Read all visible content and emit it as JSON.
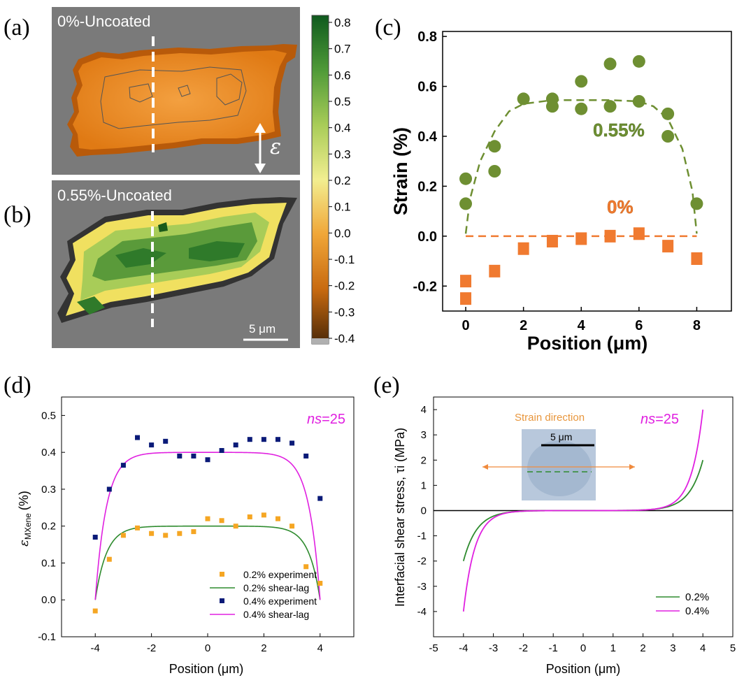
{
  "panel_labels": {
    "a": "(a)",
    "b": "(b)",
    "c": "(c)",
    "d": "(d)",
    "e": "(e)"
  },
  "map_a": {
    "label": "0%-Uncoated",
    "epsilon_symbol": "ε",
    "fill_color": "#f08a1c",
    "edge_color": "#b85a0a"
  },
  "map_b": {
    "label": "0.55%-Uncoated",
    "scale_bar": "5 μm",
    "fill_color": "#5a9a3a",
    "edge_color": "#f0e060"
  },
  "colorbar": {
    "ticks": [
      "0.8",
      "0.7",
      "0.6",
      "0.5",
      "0.4",
      "0.3",
      "0.2",
      "0.1",
      "0.0",
      "-0.1",
      "-0.2",
      "-0.3",
      "-0.4"
    ],
    "colors": [
      "#0f5a1e",
      "#4f9a38",
      "#a8cc58",
      "#f2ee90",
      "#f0a638",
      "#c86a10",
      "#4a2808"
    ]
  },
  "chart_data": [
    {
      "id": "c",
      "type": "scatter",
      "xlabel": "Position (μm)",
      "ylabel": "Strain (%)",
      "xlim": [
        -0.8,
        9.2
      ],
      "ylim": [
        -0.3,
        0.82
      ],
      "xticks": [
        0,
        2,
        4,
        6,
        8
      ],
      "yticks": [
        -0.2,
        0.0,
        0.2,
        0.4,
        0.6,
        0.8
      ],
      "ytick_labels": [
        "-0.2",
        "0.0",
        "0.2",
        "0.4",
        "0.6",
        "0.8"
      ],
      "series": [
        {
          "name": "0.55%",
          "color": "#6e8f32",
          "marker": "circle",
          "x": [
            0,
            0,
            1,
            1,
            2,
            3,
            3,
            4,
            4,
            5,
            5,
            6,
            6,
            7,
            7,
            8
          ],
          "y": [
            0.23,
            0.13,
            0.36,
            0.26,
            0.55,
            0.55,
            0.52,
            0.62,
            0.51,
            0.69,
            0.52,
            0.7,
            0.54,
            0.49,
            0.4,
            0.13
          ],
          "fit": {
            "x": [
              0,
              0.15,
              0.5,
              1,
              1.5,
              2,
              3,
              4,
              5,
              6,
              6.5,
              7,
              7.5,
              7.85,
              8
            ],
            "y": [
              0.01,
              0.15,
              0.3,
              0.42,
              0.5,
              0.53,
              0.545,
              0.545,
              0.545,
              0.54,
              0.52,
              0.47,
              0.35,
              0.18,
              0.01
            ]
          }
        },
        {
          "name": "0%",
          "color": "#f07a30",
          "marker": "square",
          "x": [
            0,
            0,
            1,
            2,
            3,
            4,
            5,
            6,
            7,
            8
          ],
          "y": [
            -0.18,
            -0.25,
            -0.14,
            -0.05,
            -0.02,
            -0.01,
            0.0,
            0.01,
            -0.04,
            -0.09
          ],
          "fit": {
            "x": [
              0,
              8
            ],
            "y": [
              0.0,
              0.0
            ]
          }
        }
      ]
    },
    {
      "id": "d",
      "type": "scatter",
      "xlabel": "Position (μm)",
      "ylabel_main": "ε",
      "ylabel_sub": "MXene",
      "ylabel_unit": "(%)",
      "annotation_prefix": "ns",
      "annotation_value": "=25",
      "xlim": [
        -5.2,
        5.2
      ],
      "ylim": [
        -0.1,
        0.55
      ],
      "xticks": [
        -4,
        -2,
        0,
        2,
        4
      ],
      "yticks": [
        -0.1,
        0.0,
        0.1,
        0.2,
        0.3,
        0.4,
        0.5
      ],
      "ytick_labels": [
        "-0.1",
        "0.0",
        "0.1",
        "0.2",
        "0.3",
        "0.4",
        "0.5"
      ],
      "series": [
        {
          "name": "0.2% experiment",
          "kind": "points",
          "color": "#f5a623",
          "x": [
            -4,
            -3.5,
            -3,
            -2.5,
            -2,
            -1.5,
            -1,
            -0.5,
            0,
            0.5,
            1,
            1.5,
            2,
            2.5,
            3,
            3.5,
            4
          ],
          "y": [
            -0.03,
            0.11,
            0.175,
            0.195,
            0.18,
            0.175,
            0.18,
            0.185,
            0.22,
            0.215,
            0.2,
            0.225,
            0.23,
            0.22,
            0.2,
            0.09,
            0.045
          ]
        },
        {
          "name": "0.2% shear-lag",
          "kind": "line",
          "color": "#2e8b2e",
          "plateau": 0.2,
          "ns": 25
        },
        {
          "name": "0.4% experiment",
          "kind": "points",
          "color": "#0a1a78",
          "x": [
            -4,
            -3.5,
            -3,
            -2.5,
            -2,
            -1.5,
            -1,
            -0.5,
            0,
            0.5,
            1,
            1.5,
            2,
            2.5,
            3,
            3.5,
            4
          ],
          "y": [
            0.17,
            0.3,
            0.365,
            0.44,
            0.42,
            0.43,
            0.39,
            0.39,
            0.38,
            0.405,
            0.42,
            0.435,
            0.435,
            0.435,
            0.425,
            0.39,
            0.275
          ]
        },
        {
          "name": "0.4% shear-lag",
          "kind": "line",
          "color": "#e020e0",
          "plateau": 0.4,
          "ns": 25
        }
      ]
    },
    {
      "id": "e",
      "type": "line",
      "xlabel": "Position (μm)",
      "ylabel": "Interfacial shear stress, τi (MPa)",
      "annotation_prefix": "ns",
      "annotation_value": "=25",
      "inset_label": "Strain direction",
      "inset_scale": "5 μm",
      "xlim": [
        -5,
        5
      ],
      "ylim": [
        -5,
        4.5
      ],
      "xticks": [
        -5,
        -4,
        -3,
        -2,
        -1,
        0,
        1,
        2,
        3,
        4,
        5
      ],
      "yticks": [
        -4,
        -3,
        -2,
        -1,
        0,
        1,
        2,
        3,
        4
      ],
      "series": [
        {
          "name": "0.2%",
          "color": "#2e8b2e",
          "amplitude": 2.0,
          "ns": 25
        },
        {
          "name": "0.4%",
          "color": "#e020e0",
          "amplitude": 4.0,
          "ns": 25
        }
      ]
    }
  ]
}
